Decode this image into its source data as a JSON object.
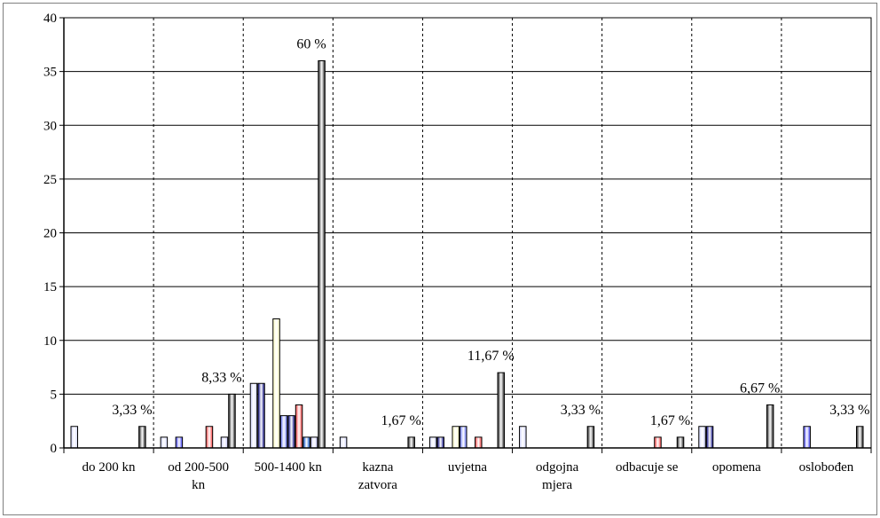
{
  "chart_data": {
    "type": "bar",
    "title": "",
    "xlabel": "",
    "ylabel": "",
    "ylim": [
      0,
      40
    ],
    "yticks": [
      0,
      5,
      10,
      15,
      20,
      25,
      30,
      35,
      40
    ],
    "grid": "horizontal solid, vertical dashed category separators",
    "legend": "none",
    "categories": [
      "do 200 kn",
      "od 200-500 kn",
      "500-1400 kn",
      "kazna zatvora",
      "uvjetna",
      "odgojna mjera",
      "odbacuje se",
      "opomena",
      "oslobođen"
    ],
    "series": [
      {
        "values": [
          2,
          1,
          6,
          1,
          1,
          2,
          0,
          2,
          0
        ],
        "color": "#d0d4ff"
      },
      {
        "values": [
          0,
          0,
          6,
          0,
          1,
          0,
          0,
          2,
          0
        ],
        "color": "#000080"
      },
      {
        "values": [
          0,
          1,
          0,
          0,
          0,
          0,
          0,
          0,
          2
        ],
        "color": "#3f3fff"
      },
      {
        "values": [
          0,
          0,
          12,
          0,
          2,
          0,
          0,
          0,
          0
        ],
        "color": "#ffffc0"
      },
      {
        "values": [
          0,
          0,
          3,
          0,
          2,
          0,
          0,
          0,
          0
        ],
        "color": "#6070ff"
      },
      {
        "values": [
          0,
          0,
          3,
          0,
          0,
          0,
          0,
          0,
          0
        ],
        "color": "#000080"
      },
      {
        "values": [
          0,
          2,
          4,
          0,
          1,
          0,
          1,
          0,
          0
        ],
        "color": "#ff4040"
      },
      {
        "values": [
          0,
          0,
          1,
          0,
          0,
          0,
          0,
          0,
          0
        ],
        "color": "#0050d0"
      },
      {
        "values": [
          0,
          1,
          1,
          0,
          0,
          0,
          0,
          0,
          0
        ],
        "color": "#c8c8ff"
      },
      {
        "values": [
          2,
          5,
          36,
          1,
          7,
          2,
          1,
          4,
          2
        ],
        "color": "#202020"
      }
    ],
    "annotations": [
      "3,33 %",
      "8,33 %",
      "60 %",
      "1,67 %",
      "11,67 %",
      "3,33 %",
      "1,67 %",
      "6,67 %",
      "3,33 %"
    ],
    "tick_labels_x": [
      [
        "do 200 kn"
      ],
      [
        "od 200-500",
        "kn"
      ],
      [
        "500-1400 kn"
      ],
      [
        "kazna",
        "zatvora"
      ],
      [
        "uvjetna"
      ],
      [
        "odgojna",
        "mjera"
      ],
      [
        "odbacuje se"
      ],
      [
        "opomena"
      ],
      [
        "oslobođen"
      ]
    ]
  }
}
